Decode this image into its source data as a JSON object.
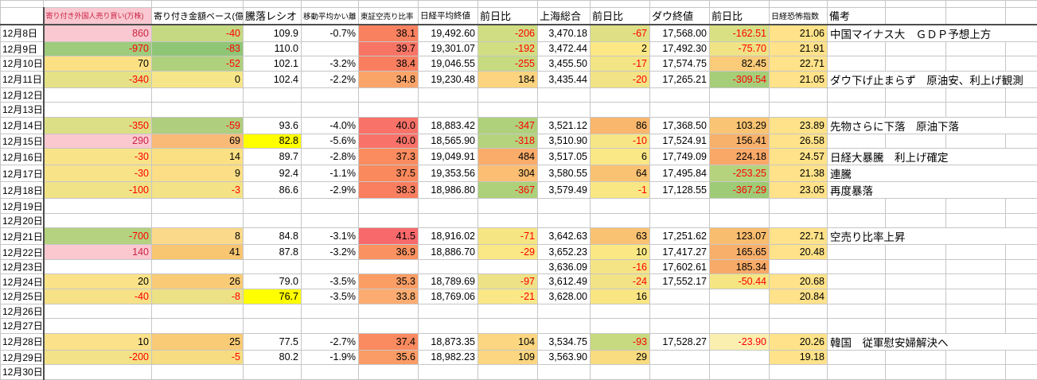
{
  "grid": {
    "columns": [
      {
        "label": "",
        "w": 54,
        "fs": 12
      },
      {
        "label": "寄り付き外国人売り買い(万株)",
        "w": 136,
        "fs": 9,
        "bg": "#F9C8D0",
        "fg": "#CC2244"
      },
      {
        "label": "寄り付き金額ベース(億)",
        "w": 115,
        "fs": 11
      },
      {
        "label": "騰落レシオ",
        "w": 73,
        "fs": 13
      },
      {
        "label": "移動平均かい離",
        "w": 72,
        "fs": 9.5
      },
      {
        "label": "東証空売り比率",
        "w": 75,
        "fs": 9.5
      },
      {
        "label": "日経平均終値",
        "w": 75,
        "fs": 10.5
      },
      {
        "label": "前日比",
        "w": 75,
        "fs": 13
      },
      {
        "label": "上海総合",
        "w": 66,
        "fs": 13
      },
      {
        "label": "前日比",
        "w": 75,
        "fs": 13
      },
      {
        "label": "ダウ終値",
        "w": 75,
        "fs": 13
      },
      {
        "label": "前日比",
        "w": 75,
        "fs": 13
      },
      {
        "label": "日経恐怖指数",
        "w": 73,
        "fs": 10
      },
      {
        "label": "備考",
        "w": 73,
        "fs": 13
      }
    ],
    "trailing_widths": [
      76,
      75,
      40
    ],
    "rows": [
      [
        [
          "12月8日"
        ],
        [
          "860",
          "#F9C8D0",
          "#CC2244"
        ],
        [
          "-40",
          "#C4D981",
          "#FF0000"
        ],
        [
          "109.9"
        ],
        [
          "-0.7%"
        ],
        [
          "38.1",
          "#F9815F"
        ],
        [
          "19,492.60"
        ],
        [
          "-206",
          "#D0DD82",
          "#FF0000"
        ],
        [
          "3,470.18"
        ],
        [
          "-67",
          "#DFE085",
          "#FF0000"
        ],
        [
          "17,568.00"
        ],
        [
          "-162.51",
          "#D9E083",
          "#FF0000"
        ],
        [
          "21.06",
          "#FFE289"
        ],
        [
          "中国マイナス大　ＧＤＰ予想上方"
        ]
      ],
      [
        [
          "12月9日"
        ],
        [
          "-970",
          "#9ECB7C",
          "#FF0000"
        ],
        [
          "-83",
          "#8FC676",
          "#FF0000"
        ],
        [
          "110.0"
        ],
        [
          ""
        ],
        [
          "39.7",
          "#F87566"
        ],
        [
          "19,301.07"
        ],
        [
          "-192",
          "#D2DE82",
          "#FF0000"
        ],
        [
          "3,472.44"
        ],
        [
          "2",
          "#FBE884"
        ],
        [
          "17,492.30"
        ],
        [
          "-75.70",
          "#F0E385",
          "#FF0000"
        ],
        [
          "21.91",
          "#FFE289"
        ],
        [
          ""
        ]
      ],
      [
        [
          "12月10日"
        ],
        [
          "70",
          "#FCE184"
        ],
        [
          "-52",
          "#AFD07D",
          "#FF0000"
        ],
        [
          "102.1"
        ],
        [
          "-3.2%"
        ],
        [
          "38.4",
          "#F97E60"
        ],
        [
          "19,046.55"
        ],
        [
          "-255",
          "#C6DA80",
          "#FF0000"
        ],
        [
          "3,455.50"
        ],
        [
          "-17",
          "#F3E486",
          "#FF0000"
        ],
        [
          "17,574.75"
        ],
        [
          "82.45",
          "#FACB78"
        ],
        [
          "22.71",
          "#FFE289"
        ],
        [
          ""
        ]
      ],
      [
        [
          "12月11日"
        ],
        [
          "-340",
          "#E4E186",
          "#FF0000"
        ],
        [
          "0",
          "#F7E689"
        ],
        [
          "102.4"
        ],
        [
          "-2.2%"
        ],
        [
          "34.8",
          "#FBA46A"
        ],
        [
          "19,230.48"
        ],
        [
          "184",
          "#FCD47F"
        ],
        [
          "3,435.44"
        ],
        [
          "-20",
          "#F2E386",
          "#FF0000"
        ],
        [
          "17,265.21"
        ],
        [
          "-309.54",
          "#A6CE79",
          "#FF0000"
        ],
        [
          "21.05",
          "#FFE289"
        ],
        [
          "ダウ下げ止まらず　原油安、利上げ観測"
        ]
      ],
      [
        [
          "12月12日"
        ]
      ],
      [
        [
          "12月13日"
        ]
      ],
      [
        [
          "12月14日"
        ],
        [
          "-350",
          "#DCDF86",
          "#FF0000"
        ],
        [
          "-59",
          "#AFCE7E",
          "#FF0000"
        ],
        [
          "93.6"
        ],
        [
          "-4.0%"
        ],
        [
          "40.0",
          "#F87269"
        ],
        [
          "18,883.42"
        ],
        [
          "-347",
          "#AFD17B",
          "#FF0000"
        ],
        [
          "3,521.12"
        ],
        [
          "86",
          "#F9B66D"
        ],
        [
          "17,368.50"
        ],
        [
          "103.29",
          "#F9C473"
        ],
        [
          "23.89",
          "#FFE289"
        ],
        [
          "先物さらに下落　原油下落"
        ]
      ],
      [
        [
          "12月15日"
        ],
        [
          "290",
          "#FBC8D0",
          "#CC2244"
        ],
        [
          "69",
          "#F9BA77"
        ],
        [
          "82.8",
          "#FFFF00"
        ],
        [
          "-5.6%"
        ],
        [
          "40.0",
          "#F87269"
        ],
        [
          "18,565.90"
        ],
        [
          "-318",
          "#B5D37D",
          "#FF0000"
        ],
        [
          "3,510.90"
        ],
        [
          "-10",
          "#F6E685",
          "#FF0000"
        ],
        [
          "17,524.91"
        ],
        [
          "156.41",
          "#F8B16B"
        ],
        [
          "26.58",
          "#FFE289"
        ],
        [
          ""
        ]
      ],
      [
        [
          "12月16日"
        ],
        [
          "-30",
          "#F8E389",
          "#FF0000"
        ],
        [
          "14",
          "#FBE083"
        ],
        [
          "89.7"
        ],
        [
          "-2.8%"
        ],
        [
          "37.3",
          "#FA8C5F"
        ],
        [
          "19,049.91"
        ],
        [
          "484",
          "#FAAC6A"
        ],
        [
          "3,517.05"
        ],
        [
          "6",
          "#FAE785"
        ],
        [
          "17,749.09"
        ],
        [
          "224.18",
          "#F9A868"
        ],
        [
          "24.57",
          "#FFE289"
        ],
        [
          "日経大暴騰　利上げ確定"
        ]
      ],
      [
        [
          "12月17日"
        ],
        [
          "-30",
          "#F8E389",
          "#FF0000"
        ],
        [
          "9",
          "#FBDE85"
        ],
        [
          "92.4"
        ],
        [
          "-1.1%"
        ],
        [
          "37.5",
          "#FA895E"
        ],
        [
          "19,353.56"
        ],
        [
          "304",
          "#FBBE73"
        ],
        [
          "3,580.55"
        ],
        [
          "64",
          "#F9C273"
        ],
        [
          "17,495.84"
        ],
        [
          "-253.25",
          "#B5D37C",
          "#FF0000"
        ],
        [
          "21.38",
          "#FFE289"
        ],
        [
          "連騰"
        ]
      ],
      [
        [
          "12月18日"
        ],
        [
          "-100",
          "#F0E287",
          "#FF0000"
        ],
        [
          "-3",
          "#F3E286",
          "#FF0000"
        ],
        [
          "86.6"
        ],
        [
          "-2.9%"
        ],
        [
          "38.3",
          "#F97F60"
        ],
        [
          "18,986.80"
        ],
        [
          "-367",
          "#ADD07A",
          "#FF0000"
        ],
        [
          "3,579.49"
        ],
        [
          "-1",
          "#F9E784",
          "#FF0000"
        ],
        [
          "17,128.55"
        ],
        [
          "-367.29",
          "#9ECB76",
          "#FF0000"
        ],
        [
          "23.05",
          "#FFE289"
        ],
        [
          "再度暴落"
        ]
      ],
      [
        [
          "12月19日"
        ]
      ],
      [
        [
          "12月20日"
        ]
      ],
      [
        [
          "12月21日"
        ],
        [
          "-700",
          "#B4D27F",
          "#FF0000"
        ],
        [
          "8",
          "#FBD98A"
        ],
        [
          "84.8"
        ],
        [
          "-3.1%"
        ],
        [
          "41.5",
          "#F8696B"
        ],
        [
          "18,916.02"
        ],
        [
          "-71",
          "#F6E583",
          "#FF0000"
        ],
        [
          "3,642.63"
        ],
        [
          "63",
          "#F9C273"
        ],
        [
          "17,251.62"
        ],
        [
          "123.07",
          "#F9BD70"
        ],
        [
          "22.71",
          "#FFE289"
        ],
        [
          "空売り比率上昇"
        ]
      ],
      [
        [
          "12月22日"
        ],
        [
          "140",
          "#FBC8D0",
          "#CC2244"
        ],
        [
          "41",
          "#F8C671"
        ],
        [
          "87.8"
        ],
        [
          "-3.2%"
        ],
        [
          "36.9",
          "#FA9161"
        ],
        [
          "18,886.70"
        ],
        [
          "-29",
          "#FAE785",
          "#FF0000"
        ],
        [
          "3,652.23"
        ],
        [
          "10",
          "#FBE783"
        ],
        [
          "17,417.27"
        ],
        [
          "165.65",
          "#F8AF6A"
        ],
        [
          "20.48",
          "#FFE289"
        ],
        [
          ""
        ]
      ],
      [
        [
          "12月23日"
        ],
        [
          ""
        ],
        [
          ""
        ],
        [
          ""
        ],
        [
          ""
        ],
        [
          ""
        ],
        [
          ""
        ],
        [
          ""
        ],
        [
          "3,636.09"
        ],
        [
          "-16",
          "#F4E486",
          "#FF0000"
        ],
        [
          "17,602.61"
        ],
        [
          "185.34",
          "#F8AA68"
        ],
        [
          ""
        ],
        [
          ""
        ]
      ],
      [
        [
          "12月24日"
        ],
        [
          "20",
          "#FAE288"
        ],
        [
          "26",
          "#F9CB77"
        ],
        [
          "79.0"
        ],
        [
          "-3.5%"
        ],
        [
          "35.3",
          "#FB9E66"
        ],
        [
          "18,789.69"
        ],
        [
          "-97",
          "#EEE287",
          "#FF0000"
        ],
        [
          "3,612.49"
        ],
        [
          "-24",
          "#F1E386",
          "#FF0000"
        ],
        [
          "17,552.17"
        ],
        [
          "-50.44",
          "#F5E583",
          "#FF0000"
        ],
        [
          "20.68",
          "#FFE289"
        ],
        [
          ""
        ]
      ],
      [
        [
          "12月25日"
        ],
        [
          "-40",
          "#F7E187",
          "#FF0000"
        ],
        [
          "-8",
          "#EDE185",
          "#FF0000"
        ],
        [
          "76.7",
          "#FFFF00"
        ],
        [
          "-3.5%"
        ],
        [
          "33.8",
          "#FCAC70"
        ],
        [
          "18,769.06"
        ],
        [
          "-21",
          "#FAE886",
          "#FF0000"
        ],
        [
          "3,628.00"
        ],
        [
          "16",
          "#FAE583"
        ],
        [
          ""
        ],
        [
          ""
        ],
        [
          "20.84",
          "#FFE289"
        ],
        [
          ""
        ]
      ],
      [
        [
          "12月26日"
        ]
      ],
      [
        [
          "12月27日"
        ]
      ],
      [
        [
          "12月28日"
        ],
        [
          "10",
          "#FBE28A"
        ],
        [
          "25",
          "#F9CB77"
        ],
        [
          "77.5"
        ],
        [
          "-2.7%"
        ],
        [
          "37.4",
          "#FA8A5F"
        ],
        [
          "18,873.35"
        ],
        [
          "104",
          "#FCD681"
        ],
        [
          "3,534.75"
        ],
        [
          "-93",
          "#C8DA80",
          "#FF0000"
        ],
        [
          "17,528.27"
        ],
        [
          "-23.90",
          "#FBEFB0",
          "#FF0000"
        ],
        [
          "20.26",
          "#FFE289"
        ],
        [
          "韓国　従軍慰安婦解決へ"
        ]
      ],
      [
        [
          "12月29日"
        ],
        [
          "-200",
          "#F3E287",
          "#FF0000"
        ],
        [
          "-5",
          "#F7DC81",
          "#FF0000"
        ],
        [
          "80.2"
        ],
        [
          "-1.9%"
        ],
        [
          "35.6",
          "#FB9B65"
        ],
        [
          "18,982.23"
        ],
        [
          "109",
          "#FCD680"
        ],
        [
          "3,563.90"
        ],
        [
          "29",
          "#F8DC7F"
        ],
        [
          ""
        ],
        [
          ""
        ],
        [
          "19.18",
          "#FFE289"
        ],
        [
          ""
        ]
      ],
      [
        [
          "12月30日"
        ]
      ]
    ]
  },
  "colors": {
    "grid_line": "#C6C6C6",
    "freeze_pane_line": "#4d4d4d",
    "negative_text": "#FF0000",
    "pink_cell_text": "#CC2244",
    "manual_highlight": "#FFFF00",
    "vix_column_fill": "#FFE289"
  }
}
